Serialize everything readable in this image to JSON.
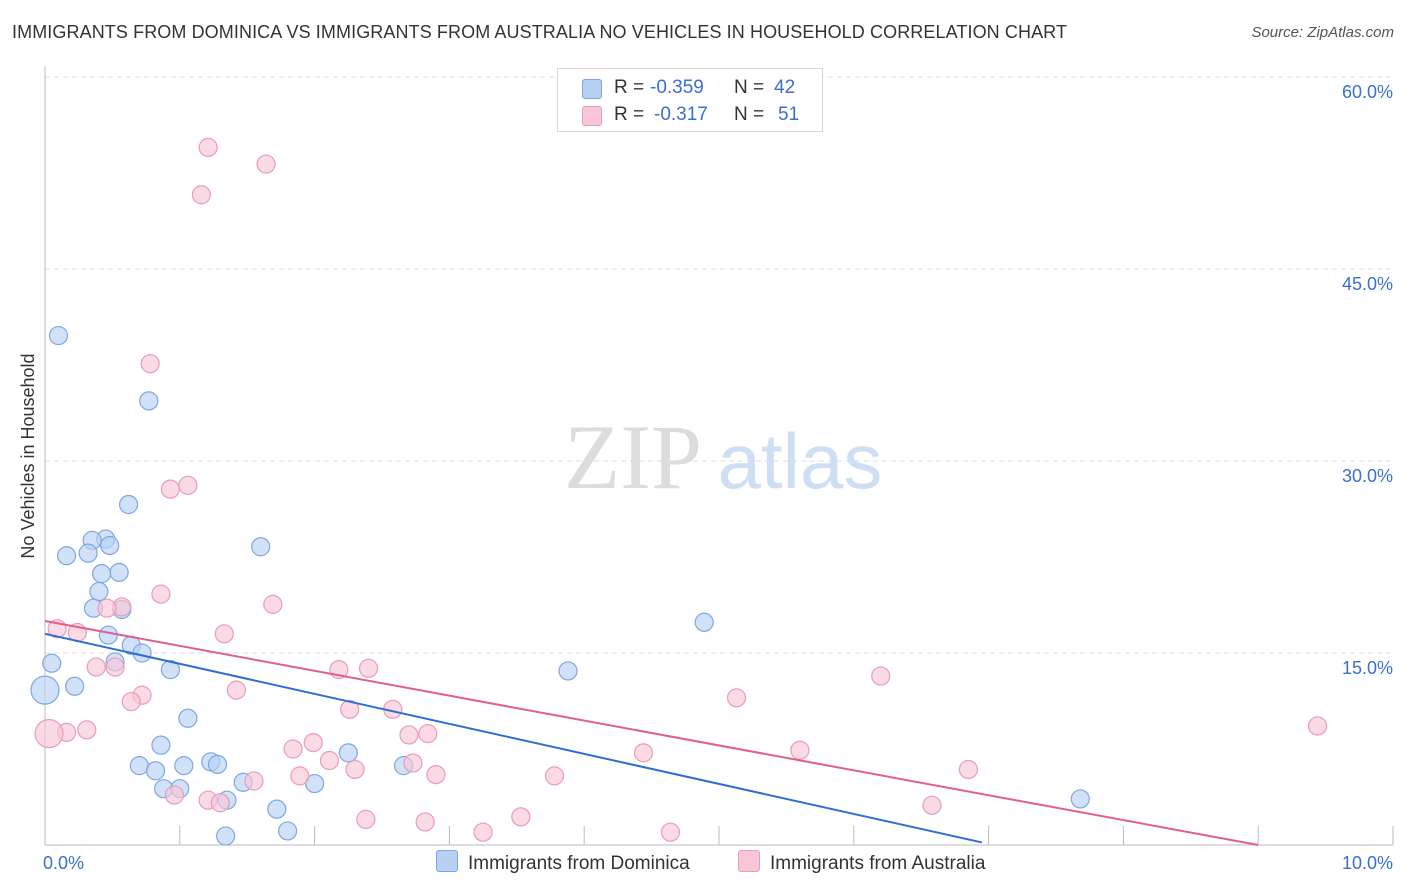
{
  "title": "IMMIGRANTS FROM DOMINICA VS IMMIGRANTS FROM AUSTRALIA NO VEHICLES IN HOUSEHOLD CORRELATION CHART",
  "source": "Source: ZipAtlas.com",
  "watermark": {
    "zip": "ZIP",
    "atlas": "atlas"
  },
  "colors": {
    "dominica_fill": "#b7d1f5",
    "dominica_stroke": "#7ea7e3",
    "dominica_line": "#2f6fd0",
    "australia_fill": "#f8c6d6",
    "australia_stroke": "#ea9cb8",
    "australia_line": "#e05f8c",
    "axis_label": "#3a6fcf"
  },
  "legend": {
    "rows": [
      {
        "r_label": "R =",
        "r_value": "-0.359",
        "n_label": "N =",
        "n_value": "42"
      },
      {
        "r_label": "R =",
        "r_value": "-0.317",
        "n_label": "N =",
        "n_value": "51"
      }
    ]
  },
  "chart_data": {
    "type": "scatter",
    "xlabel": "",
    "ylabel": "No Vehicles in Household",
    "xlim": [
      0,
      10
    ],
    "ylim": [
      0,
      60
    ],
    "x_tick_labels": [
      "0.0%",
      "10.0%"
    ],
    "y_ticks": [
      15,
      30,
      45,
      60
    ],
    "y_tick_labels": [
      "15.0%",
      "30.0%",
      "45.0%",
      "60.0%"
    ],
    "grid": true,
    "legend_position": "top-center",
    "series": [
      {
        "name": "Immigrants from Dominica",
        "points": [
          [
            0.1,
            39.8
          ],
          [
            0.77,
            34.7
          ],
          [
            0.62,
            26.6
          ],
          [
            0.45,
            23.9
          ],
          [
            0.35,
            23.8
          ],
          [
            0.32,
            22.8
          ],
          [
            0.48,
            23.4
          ],
          [
            0.16,
            22.6
          ],
          [
            1.6,
            23.3
          ],
          [
            0.55,
            21.3
          ],
          [
            0.42,
            21.2
          ],
          [
            0.4,
            19.8
          ],
          [
            0.57,
            18.4
          ],
          [
            0.36,
            18.5
          ],
          [
            0.47,
            16.4
          ],
          [
            0.64,
            15.6
          ],
          [
            0.72,
            15.0
          ],
          [
            0.52,
            14.3
          ],
          [
            0.05,
            14.2
          ],
          [
            0.93,
            13.7
          ],
          [
            0.0,
            12.1
          ],
          [
            0.22,
            12.4
          ],
          [
            1.06,
            9.9
          ],
          [
            0.86,
            7.8
          ],
          [
            1.23,
            6.5
          ],
          [
            1.28,
            6.3
          ],
          [
            0.7,
            6.2
          ],
          [
            0.82,
            5.8
          ],
          [
            1.03,
            6.2
          ],
          [
            0.88,
            4.4
          ],
          [
            1.47,
            4.9
          ],
          [
            1.0,
            4.4
          ],
          [
            1.35,
            3.5
          ],
          [
            1.72,
            2.8
          ],
          [
            2.25,
            7.2
          ],
          [
            2.0,
            4.8
          ],
          [
            2.66,
            6.2
          ],
          [
            1.34,
            0.7
          ],
          [
            1.8,
            1.1
          ],
          [
            4.89,
            17.4
          ],
          [
            3.88,
            13.6
          ],
          [
            7.68,
            3.6
          ]
        ]
      },
      {
        "name": "Immigrants from Australia",
        "points": [
          [
            1.21,
            54.5
          ],
          [
            1.64,
            53.2
          ],
          [
            1.16,
            50.8
          ],
          [
            0.78,
            37.6
          ],
          [
            1.06,
            28.1
          ],
          [
            0.93,
            27.8
          ],
          [
            1.69,
            18.8
          ],
          [
            0.86,
            19.6
          ],
          [
            0.57,
            18.6
          ],
          [
            0.46,
            18.5
          ],
          [
            0.09,
            16.9
          ],
          [
            0.24,
            16.6
          ],
          [
            1.33,
            16.5
          ],
          [
            0.38,
            13.9
          ],
          [
            0.52,
            13.9
          ],
          [
            2.18,
            13.7
          ],
          [
            2.4,
            13.8
          ],
          [
            1.42,
            12.1
          ],
          [
            0.72,
            11.7
          ],
          [
            0.64,
            11.2
          ],
          [
            6.2,
            13.2
          ],
          [
            5.13,
            11.5
          ],
          [
            2.26,
            10.6
          ],
          [
            2.58,
            10.6
          ],
          [
            0.31,
            9.0
          ],
          [
            0.16,
            8.8
          ],
          [
            0.03,
            8.7
          ],
          [
            2.84,
            8.7
          ],
          [
            2.7,
            8.6
          ],
          [
            9.44,
            9.3
          ],
          [
            1.84,
            7.5
          ],
          [
            1.99,
            8.0
          ],
          [
            4.44,
            7.2
          ],
          [
            5.6,
            7.4
          ],
          [
            2.11,
            6.6
          ],
          [
            2.3,
            5.9
          ],
          [
            2.73,
            6.4
          ],
          [
            2.9,
            5.5
          ],
          [
            1.89,
            5.4
          ],
          [
            1.55,
            5.0
          ],
          [
            3.78,
            5.4
          ],
          [
            6.85,
            5.9
          ],
          [
            1.21,
            3.5
          ],
          [
            1.3,
            3.3
          ],
          [
            0.96,
            3.9
          ],
          [
            6.58,
            3.1
          ],
          [
            2.38,
            2.0
          ],
          [
            2.82,
            1.8
          ],
          [
            3.53,
            2.2
          ],
          [
            3.25,
            1.0
          ],
          [
            4.64,
            1.0
          ]
        ]
      }
    ],
    "trend_lines": [
      {
        "series": "Immigrants from Dominica",
        "x": [
          0,
          6.95
        ],
        "y": [
          16.5,
          0.2
        ]
      },
      {
        "series": "Immigrants from Australia",
        "x": [
          0,
          9.0
        ],
        "y": [
          17.5,
          0.0
        ]
      }
    ]
  }
}
